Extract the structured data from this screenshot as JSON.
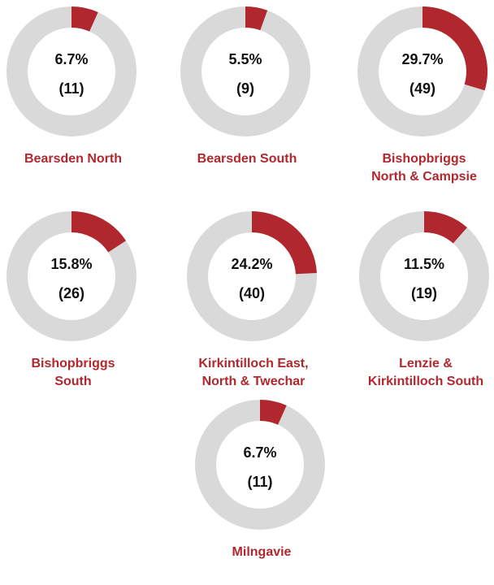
{
  "chart_data": [
    {
      "type": "donut",
      "title": [
        "Bearsden North"
      ],
      "values": [
        6.7
      ],
      "value_labels": [
        "6.7%"
      ],
      "counts": [
        11
      ],
      "count_labels": [
        "(11)"
      ],
      "color": "#b0282e",
      "track_color": "#d9d9d9"
    },
    {
      "type": "donut",
      "title": [
        "Bearsden South"
      ],
      "values": [
        5.5
      ],
      "value_labels": [
        "5.5%"
      ],
      "counts": [
        9
      ],
      "count_labels": [
        "(9)"
      ],
      "color": "#b0282e",
      "track_color": "#d9d9d9"
    },
    {
      "type": "donut",
      "title": [
        "Bishopbriggs",
        "North & Campsie"
      ],
      "values": [
        29.7
      ],
      "value_labels": [
        "29.7%"
      ],
      "counts": [
        49
      ],
      "count_labels": [
        "(49)"
      ],
      "color": "#b0282e",
      "track_color": "#d9d9d9"
    },
    {
      "type": "donut",
      "title": [
        "Bishopbriggs",
        "South"
      ],
      "values": [
        15.8
      ],
      "value_labels": [
        "15.8%"
      ],
      "counts": [
        26
      ],
      "count_labels": [
        "(26)"
      ],
      "color": "#b0282e",
      "track_color": "#d9d9d9"
    },
    {
      "type": "donut",
      "title": [
        "Kirkintilloch East,",
        "North & Twechar"
      ],
      "values": [
        24.2
      ],
      "value_labels": [
        "24.2%"
      ],
      "counts": [
        40
      ],
      "count_labels": [
        "(40)"
      ],
      "color": "#b0282e",
      "track_color": "#d9d9d9"
    },
    {
      "type": "donut",
      "title": [
        "Lenzie &",
        "Kirkintilloch South"
      ],
      "values": [
        11.5
      ],
      "value_labels": [
        "11.5%"
      ],
      "counts": [
        19
      ],
      "count_labels": [
        "(19)"
      ],
      "color": "#b0282e",
      "track_color": "#d9d9d9"
    },
    {
      "type": "donut",
      "title": [
        "Milngavie"
      ],
      "values": [
        6.7
      ],
      "value_labels": [
        "6.7%"
      ],
      "counts": [
        11
      ],
      "count_labels": [
        "(11)"
      ],
      "color": "#b0282e",
      "track_color": "#d9d9d9"
    }
  ]
}
